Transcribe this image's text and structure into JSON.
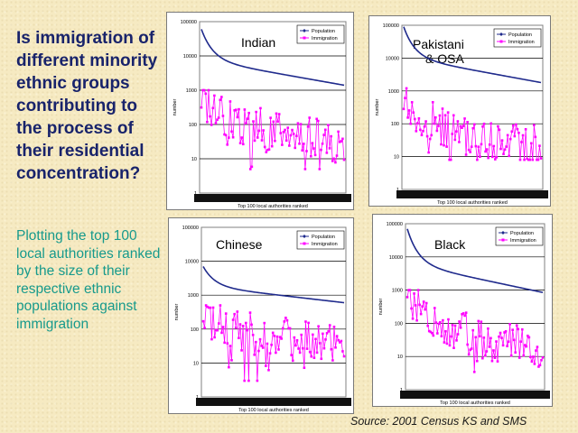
{
  "slide": {
    "question": "Is immigration of different minority ethnic groups contributing to the process of their residential concentration?",
    "note": "Plotting the top 100 local authorities ranked by the size of their respective ethnic populations against immigration",
    "source": "Source: 2001 Census KS and SMS"
  },
  "colors": {
    "population": "#1f2a8c",
    "immigration": "#ff00ff"
  },
  "chart_data": [
    {
      "type": "line",
      "title": "Indian",
      "log_y": true,
      "ylim": [
        1,
        100000
      ],
      "ylabel": "number",
      "xlabel": "Top 100 local authorities ranked",
      "legend": [
        "Population",
        "Immigration"
      ],
      "legend_position": "top-right",
      "yticks": [
        "100000",
        "10000",
        "1000",
        "100",
        "10",
        "1"
      ],
      "population": {
        "start": 60000,
        "end": 1400
      },
      "immigration": {
        "start": 800,
        "end": 25,
        "min": 5,
        "max": 1000
      }
    },
    {
      "type": "line",
      "title": "Pakistani & OSA",
      "log_y": true,
      "ylim": [
        1,
        100000
      ],
      "ylabel": "number",
      "xlabel": "Top 100 local authorities ranked",
      "legend": [
        "Population",
        "Immigration"
      ],
      "legend_position": "top-right",
      "yticks": [
        "100000",
        "10000",
        "1000",
        "100",
        "10",
        "1"
      ],
      "population": {
        "start": 90000,
        "end": 1800
      },
      "immigration": {
        "start": 600,
        "end": 20,
        "min": 8,
        "max": 1200
      }
    },
    {
      "type": "line",
      "title": "Chinese",
      "log_y": true,
      "ylim": [
        1,
        100000
      ],
      "ylabel": "number",
      "xlabel": "Top 100 local authorities ranked",
      "legend": [
        "Population",
        "Immigration"
      ],
      "legend_position": "top-right",
      "yticks": [
        "100000",
        "10000",
        "1000",
        "100",
        "10",
        "1"
      ],
      "population": {
        "start": 7000,
        "end": 600
      },
      "immigration": {
        "start": 300,
        "end": 30,
        "min": 3,
        "max": 500
      }
    },
    {
      "type": "line",
      "title": "Black",
      "log_y": true,
      "ylim": [
        1,
        100000
      ],
      "ylabel": "number",
      "xlabel": "Top 100 local authorities ranked",
      "legend": [
        "Population",
        "Immigration"
      ],
      "legend_position": "top-right",
      "yticks": [
        "100000",
        "10000",
        "1000",
        "100",
        "10",
        "1"
      ],
      "population": {
        "start": 70000,
        "end": 850
      },
      "immigration": {
        "start": 900,
        "end": 15,
        "min": 3,
        "max": 1000
      }
    }
  ]
}
